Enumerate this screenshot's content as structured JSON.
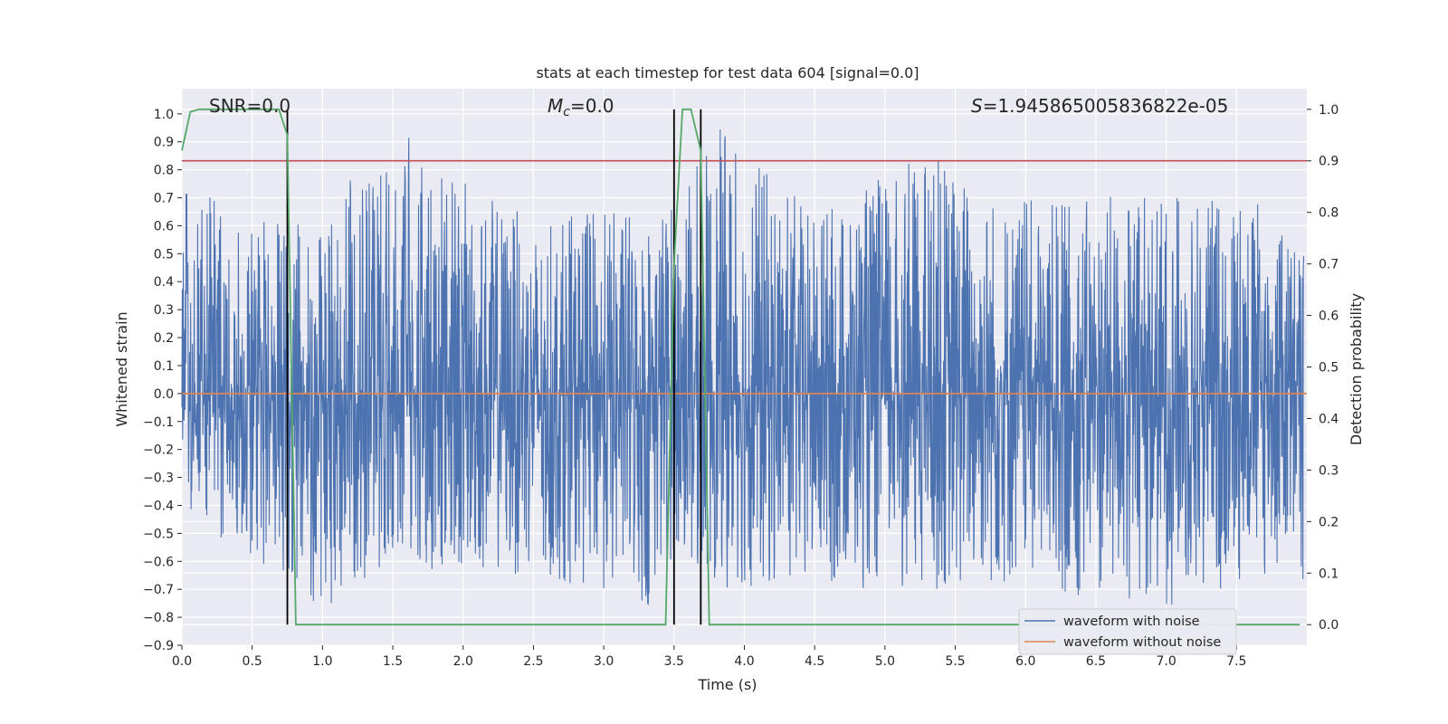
{
  "chart_data": {
    "type": "line",
    "title": "stats at each timestep for test data 604 [signal=0.0]",
    "xlabel": "Time (s)",
    "ylabel": "Whitened strain",
    "ylabel_right": "Detection probability",
    "xlim": [
      0.0,
      8.0
    ],
    "ylim": [
      -0.9,
      1.09
    ],
    "ylim_right": [
      -0.04,
      1.04
    ],
    "x_ticks": [
      "0.0",
      "0.5",
      "1.0",
      "1.5",
      "2.0",
      "2.5",
      "3.0",
      "3.5",
      "4.0",
      "4.5",
      "5.0",
      "5.5",
      "6.0",
      "6.5",
      "7.0",
      "7.5"
    ],
    "y_ticks": [
      "1.0",
      "0.9",
      "0.8",
      "0.7",
      "0.6",
      "0.5",
      "0.4",
      "0.3",
      "0.2",
      "0.1",
      "0.0",
      "-0.1",
      "-0.2",
      "-0.3",
      "-0.4",
      "-0.5",
      "-0.6",
      "-0.7",
      "-0.8",
      "-0.9"
    ],
    "y_ticks_right": [
      "1.0",
      "0.9",
      "0.8",
      "0.7",
      "0.6",
      "0.5",
      "0.4",
      "0.3",
      "0.2",
      "0.1",
      "0.0"
    ],
    "annotations": {
      "snr": "SNR=0.0",
      "mc_symbol": "M",
      "mc_sub": "c",
      "mc_value": "=0.0",
      "s_symbol": "S",
      "s_value": "=1.945865005836822e-05"
    },
    "series": [
      {
        "name": "waveform with noise",
        "color": "#4c72b0",
        "axis": "left",
        "description_points": {
          "x": [
            0.0,
            0.5,
            1.0,
            1.45,
            2.0,
            2.5,
            3.0,
            3.3,
            3.5,
            3.85,
            4.5,
            5.0,
            5.35,
            6.0,
            6.5,
            7.0,
            7.5,
            7.95
          ],
          "y_max": [
            0.77,
            0.62,
            0.6,
            1.0,
            0.77,
            0.62,
            0.66,
            0.67,
            0.72,
            0.96,
            0.64,
            0.78,
            0.87,
            0.69,
            0.7,
            0.72,
            0.75,
            0.59
          ],
          "y_min": [
            -0.44,
            -0.58,
            -0.77,
            -0.62,
            -0.65,
            -0.65,
            -0.71,
            -0.81,
            -0.58,
            -0.7,
            -0.72,
            -0.69,
            -0.71,
            -0.71,
            -0.73,
            -0.76,
            -0.69,
            -0.68
          ]
        }
      },
      {
        "name": "waveform without noise",
        "color": "#dd8452",
        "axis": "left",
        "x": [
          0.0,
          8.0
        ],
        "y": [
          0.0,
          0.0
        ]
      },
      {
        "name": "detection probability",
        "color": "#55a868",
        "axis": "right",
        "x": [
          0.0,
          0.06,
          0.12,
          0.69,
          0.75,
          0.81,
          3.44,
          3.5,
          3.56,
          3.62,
          3.69,
          3.75,
          7.95
        ],
        "y": [
          0.92,
          0.995,
          1.0,
          1.0,
          0.95,
          0.0,
          0.0,
          0.7,
          1.0,
          1.0,
          0.92,
          0.0,
          0.0
        ]
      }
    ],
    "threshold": {
      "value": 0.9,
      "axis": "right",
      "color": "#c44e52"
    },
    "vertical_lines": {
      "x": [
        0.75,
        3.5,
        3.69
      ],
      "color": "#000000"
    },
    "legend": {
      "position": "lower-right",
      "entries": [
        "waveform with noise",
        "waveform without noise"
      ]
    },
    "grid": true,
    "background": "#eaeaf2"
  }
}
